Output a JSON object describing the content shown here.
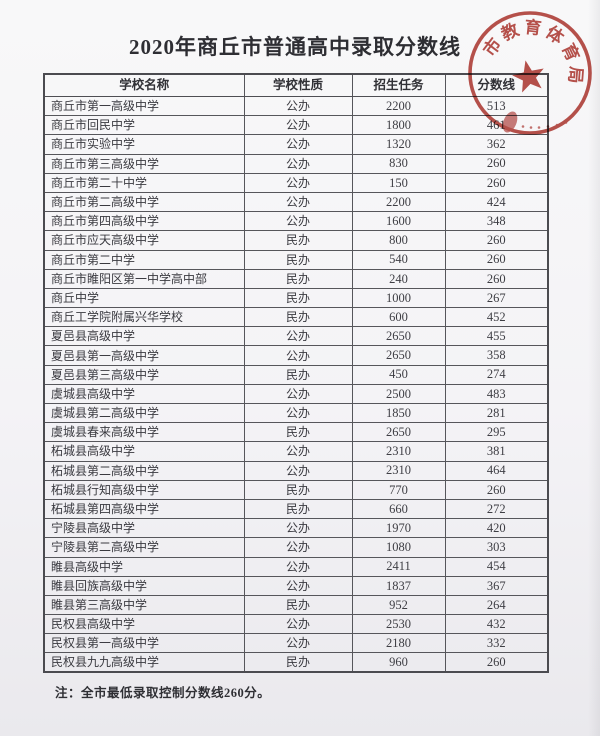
{
  "page": {
    "title": "2020年商丘市普通高中录取分数线",
    "note": "注：全市最低录取控制分数线260分。"
  },
  "stamp": {
    "arc_text": "市教育体育局",
    "color": "#b4433d",
    "shape": "circular-seal-with-star"
  },
  "table": {
    "headers": [
      "学校名称",
      "学校性质",
      "招生任务",
      "分数线"
    ],
    "rows": [
      [
        "商丘市第一高级中学",
        "公办",
        "2200",
        "513"
      ],
      [
        "商丘市回民中学",
        "公办",
        "1800",
        "461"
      ],
      [
        "商丘市实验中学",
        "公办",
        "1320",
        "362"
      ],
      [
        "商丘市第三高级中学",
        "公办",
        "830",
        "260"
      ],
      [
        "商丘市第二十中学",
        "公办",
        "150",
        "260"
      ],
      [
        "商丘市第二高级中学",
        "公办",
        "2200",
        "424"
      ],
      [
        "商丘市第四高级中学",
        "公办",
        "1600",
        "348"
      ],
      [
        "商丘市应天高级中学",
        "民办",
        "800",
        "260"
      ],
      [
        "商丘市第二中学",
        "民办",
        "540",
        "260"
      ],
      [
        "商丘市睢阳区第一中学高中部",
        "民办",
        "240",
        "260"
      ],
      [
        "商丘中学",
        "民办",
        "1000",
        "267"
      ],
      [
        "商丘工学院附属兴华学校",
        "民办",
        "600",
        "452"
      ],
      [
        "夏邑县高级中学",
        "公办",
        "2650",
        "455"
      ],
      [
        "夏邑县第一高级中学",
        "公办",
        "2650",
        "358"
      ],
      [
        "夏邑县第三高级中学",
        "民办",
        "450",
        "274"
      ],
      [
        "虞城县高级中学",
        "公办",
        "2500",
        "483"
      ],
      [
        "虞城县第二高级中学",
        "公办",
        "1850",
        "281"
      ],
      [
        "虞城县春来高级中学",
        "民办",
        "2650",
        "295"
      ],
      [
        "柘城县高级中学",
        "公办",
        "2310",
        "381"
      ],
      [
        "柘城县第二高级中学",
        "公办",
        "2310",
        "464"
      ],
      [
        "柘城县行知高级中学",
        "民办",
        "770",
        "260"
      ],
      [
        "柘城县第四高级中学",
        "民办",
        "660",
        "272"
      ],
      [
        "宁陵县高级中学",
        "公办",
        "1970",
        "420"
      ],
      [
        "宁陵县第二高级中学",
        "公办",
        "1080",
        "303"
      ],
      [
        "睢县高级中学",
        "公办",
        "2411",
        "454"
      ],
      [
        "睢县回族高级中学",
        "公办",
        "1837",
        "367"
      ],
      [
        "睢县第三高级中学",
        "民办",
        "952",
        "264"
      ],
      [
        "民权县高级中学",
        "公办",
        "2530",
        "432"
      ],
      [
        "民权县第一高级中学",
        "公办",
        "2180",
        "332"
      ],
      [
        "民权县九九高级中学",
        "民办",
        "960",
        "260"
      ]
    ]
  }
}
